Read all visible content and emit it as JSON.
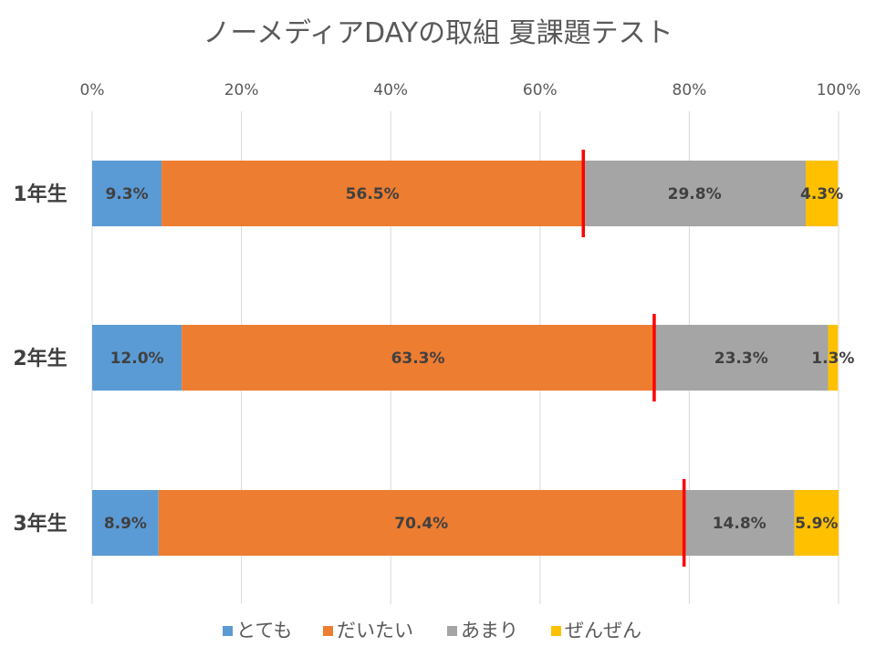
{
  "chart_data": {
    "type": "bar",
    "orientation": "horizontal",
    "stacked": "percent",
    "title": "ノーメディアDAYの取組 夏課題テスト",
    "categories": [
      "1年生",
      "2年生",
      "3年生"
    ],
    "series": [
      {
        "name": "とても",
        "color": "#5B9BD5",
        "values": [
          9.3,
          12.0,
          8.9
        ],
        "labels": [
          "9.3%",
          "12.0%",
          "8.9%"
        ]
      },
      {
        "name": "だいたい",
        "color": "#ED7D31",
        "values": [
          56.5,
          63.3,
          70.4
        ],
        "labels": [
          "56.5%",
          "63.3%",
          "70.4%"
        ]
      },
      {
        "name": "あまり",
        "color": "#A5A5A5",
        "values": [
          29.8,
          23.3,
          14.8
        ],
        "labels": [
          "29.8%",
          "23.3%",
          "14.8%"
        ]
      },
      {
        "name": "ぜんぜん",
        "color": "#FFC000",
        "values": [
          4.3,
          1.3,
          5.9
        ],
        "labels": [
          "4.3%",
          "1.3%",
          "5.9%"
        ]
      }
    ],
    "xlim": [
      0,
      100
    ],
    "xticks": [
      "0%",
      "20%",
      "40%",
      "60%",
      "80%",
      "100%"
    ],
    "xaxis_position": "top",
    "grid": true,
    "legend_position": "bottom",
    "marker_lines": {
      "color": "#FF0000",
      "values": [
        65.8,
        75.3,
        79.3
      ]
    }
  }
}
